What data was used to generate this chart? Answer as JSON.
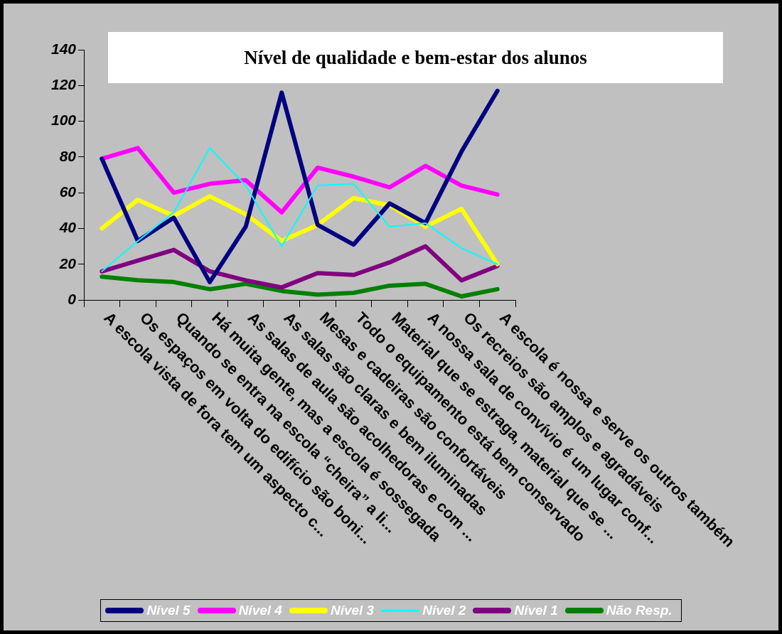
{
  "chart_data": {
    "type": "line",
    "title": "Nível de qualidade e bem-estar dos alunos",
    "categories": [
      "A escola vista de fora tem um aspecto c...",
      "Os espaços em volta do edifício são boni...",
      "Quando se entra na escola “cheira” a li...",
      "Há muita gente, mas a escola é sossegada",
      "As salas de aula são acolhedoras e com ...",
      "As salas são claras e bem iluminadas",
      "Mesas e cadeiras são confortáveis",
      "Todo o equipamento está bem conservado",
      "Material que se estraga, material que se ...",
      "A nossa sala de convívio é um lugar conf...",
      "Os recreios são amplos e agradáveis",
      "A escola é nossa e serve os outros também"
    ],
    "series": [
      {
        "name": "Nível 5",
        "color": "#000080",
        "values": [
          79,
          33,
          46,
          10,
          41,
          116,
          42,
          31,
          54,
          43,
          83,
          117
        ]
      },
      {
        "name": "Nível 4",
        "color": "#ff00ff",
        "values": [
          79,
          85,
          60,
          65,
          67,
          49,
          74,
          69,
          63,
          75,
          64,
          59
        ]
      },
      {
        "name": "Nível 3",
        "color": "#ffff00",
        "values": [
          40,
          56,
          47,
          58,
          48,
          33,
          42,
          57,
          53,
          41,
          51,
          20
        ]
      },
      {
        "name": "Nível 2",
        "color": "#00ffff",
        "values": [
          16,
          33,
          49,
          85,
          64,
          30,
          64,
          65,
          41,
          43,
          29,
          20
        ]
      },
      {
        "name": "Nível 1",
        "color": "#800080",
        "values": [
          16,
          22,
          28,
          16,
          11,
          7,
          15,
          14,
          21,
          30,
          11,
          19
        ]
      },
      {
        "name": "Não Resp.",
        "color": "#008000",
        "values": [
          13,
          11,
          10,
          6,
          9,
          5,
          3,
          4,
          8,
          9,
          2,
          6
        ]
      }
    ],
    "ylim": [
      0,
      140
    ],
    "yticks": [
      0,
      20,
      40,
      60,
      80,
      100,
      120,
      140
    ],
    "grid": false,
    "legend": "bottom",
    "marker": "none",
    "line_style": "solid"
  }
}
